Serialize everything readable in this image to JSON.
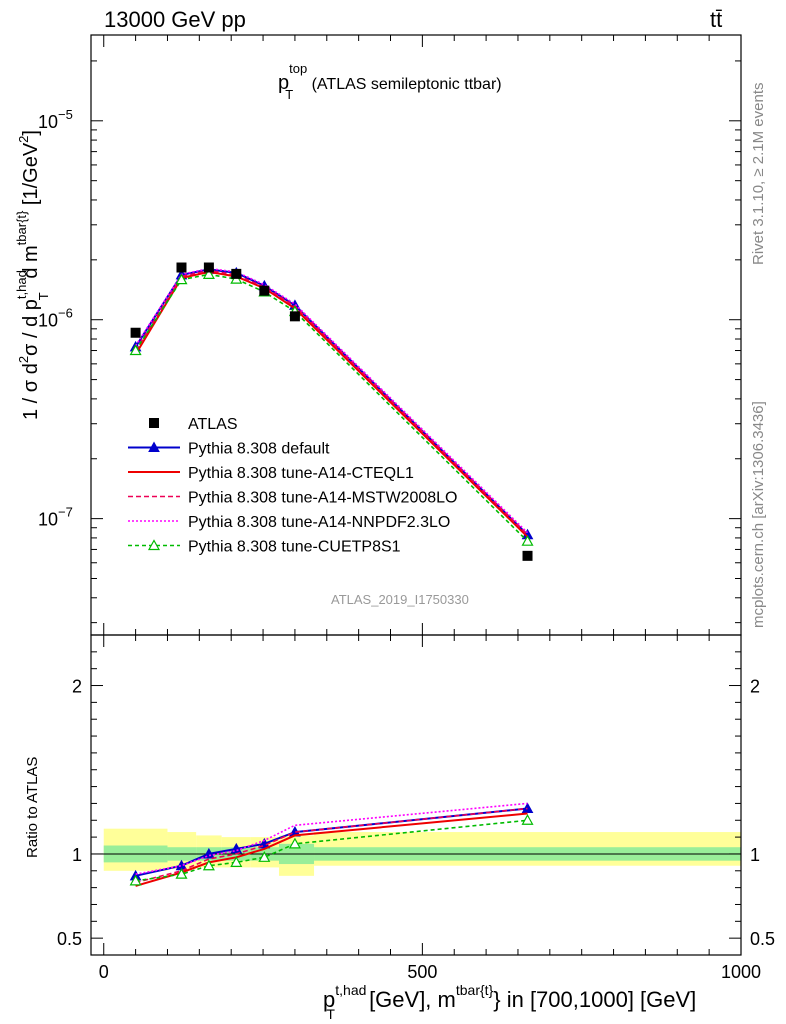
{
  "header": {
    "energy_label": "13000 GeV pp",
    "process_label": "tt̄"
  },
  "side_labels": {
    "rivet": "Rivet 3.1.10, ≥ 2.1M events",
    "mcplots": "mcplots.cern.ch [arXiv:1306.3436]"
  },
  "chart_data": [
    {
      "type": "scatter",
      "panel": "main",
      "title_main": "p",
      "title_sup": "top",
      "title_sub": "T",
      "title_rest": " (ATLAS semileptonic ttbar)",
      "watermark": "ATLAS_2019_I1750330",
      "ylabel_parts": {
        "a": "1 / σ d",
        "b": "2",
        "c": "σ / d p",
        "d": "t,had",
        "e": "T",
        "f": " d m",
        "g": "tbar{t}",
        "h": " [1/GeV",
        "i": "2",
        "j": "]"
      },
      "yscale": "log",
      "ylim": [
        2.6e-08,
        2.7e-05
      ],
      "xlim": [
        -20,
        1000
      ],
      "y_ticks": [
        {
          "value": 1e-07,
          "base": "10",
          "exp": "−7"
        },
        {
          "value": 1e-06,
          "base": "10",
          "exp": "−6"
        },
        {
          "value": 1e-05,
          "base": "10",
          "exp": "−5"
        }
      ],
      "data_series": {
        "name": "ATLAS",
        "color": "#000000",
        "x": [
          50,
          122,
          165,
          208,
          252,
          300,
          665
        ],
        "y": [
          8.6e-07,
          1.83e-06,
          1.83e-06,
          1.7e-06,
          1.4e-06,
          1.04e-06,
          6.5e-08
        ]
      },
      "series": [
        {
          "name": "Pythia 8.308 default",
          "color": "#0000cc",
          "dash": "",
          "marker": "triangle-filled",
          "x": [
            50,
            122,
            165,
            208,
            252,
            300,
            665
          ],
          "y": [
            7.3e-07,
            1.68e-06,
            1.79e-06,
            1.72e-06,
            1.48e-06,
            1.18e-06,
            8.3e-08
          ]
        },
        {
          "name": "Pythia 8.308 tune-A14-CTEQL1",
          "color": "#ee0000",
          "dash": "",
          "marker": "none",
          "x": [
            50,
            122,
            165,
            208,
            252,
            300,
            665
          ],
          "y": [
            6.7e-07,
            1.62e-06,
            1.74e-06,
            1.65e-06,
            1.44e-06,
            1.14e-06,
            8.1e-08
          ]
        },
        {
          "name": "Pythia 8.308 tune-A14-MSTW2008LO",
          "color": "#ee0055",
          "dash": "5,3",
          "marker": "none",
          "x": [
            50,
            122,
            165,
            208,
            252,
            300,
            665
          ],
          "y": [
            7e-07,
            1.65e-06,
            1.77e-06,
            1.68e-06,
            1.46e-06,
            1.17e-06,
            8.3e-08
          ]
        },
        {
          "name": "Pythia 8.308 tune-A14-NNPDF2.3LO",
          "color": "#ff00ff",
          "dash": "2,2",
          "marker": "none",
          "x": [
            50,
            122,
            165,
            208,
            252,
            300,
            665
          ],
          "y": [
            7.4e-07,
            1.69e-06,
            1.81e-06,
            1.74e-06,
            1.5e-06,
            1.2e-06,
            8.5e-08
          ]
        },
        {
          "name": "Pythia 8.308 tune-CUETP8S1",
          "color": "#00bb00",
          "dash": "4,3",
          "marker": "triangle-open",
          "x": [
            50,
            122,
            165,
            208,
            252,
            300,
            665
          ],
          "y": [
            7e-07,
            1.59e-06,
            1.69e-06,
            1.6e-06,
            1.38e-06,
            1.1e-06,
            7.7e-08
          ]
        }
      ]
    },
    {
      "type": "line",
      "panel": "ratio",
      "ylabel": "Ratio to ATLAS",
      "ylim": [
        0.4,
        2.3
      ],
      "xlim": [
        -20,
        1000
      ],
      "y_ticks": [
        {
          "value": 0.5,
          "label": "0.5"
        },
        {
          "value": 1,
          "label": "1"
        },
        {
          "value": 2,
          "label": "2"
        }
      ],
      "x_ticks": [
        {
          "value": 0,
          "label": "0"
        },
        {
          "value": 500,
          "label": "500"
        },
        {
          "value": 1000,
          "label": "1000"
        }
      ],
      "xlabel_parts": {
        "a": "p",
        "b": "t,had",
        "c": "T",
        "d": " [GeV], m",
        "e": "tbar{t}",
        "f": "} in [700,1000] [GeV]"
      },
      "bins": [
        {
          "x0": 0,
          "x1": 100,
          "stat_lo": 0.95,
          "stat_hi": 1.05,
          "tot_lo": 0.9,
          "tot_hi": 1.15
        },
        {
          "x0": 100,
          "x1": 145,
          "stat_lo": 0.96,
          "stat_hi": 1.04,
          "tot_lo": 0.91,
          "tot_hi": 1.13
        },
        {
          "x0": 145,
          "x1": 185,
          "stat_lo": 0.96,
          "stat_hi": 1.04,
          "tot_lo": 0.92,
          "tot_hi": 1.11
        },
        {
          "x0": 185,
          "x1": 230,
          "stat_lo": 0.96,
          "stat_hi": 1.04,
          "tot_lo": 0.92,
          "tot_hi": 1.1
        },
        {
          "x0": 230,
          "x1": 275,
          "stat_lo": 0.96,
          "stat_hi": 1.04,
          "tot_lo": 0.92,
          "tot_hi": 1.1
        },
        {
          "x0": 275,
          "x1": 330,
          "stat_lo": 0.94,
          "stat_hi": 1.06,
          "tot_lo": 0.87,
          "tot_hi": 1.11
        },
        {
          "x0": 330,
          "x1": 1000,
          "stat_lo": 0.96,
          "stat_hi": 1.04,
          "tot_lo": 0.93,
          "tot_hi": 1.13
        }
      ],
      "series": [
        {
          "name": "Pythia 8.308 default",
          "color": "#0000cc",
          "dash": "",
          "marker": "triangle-filled",
          "x": [
            50,
            122,
            165,
            208,
            252,
            300,
            665
          ],
          "y": [
            0.87,
            0.93,
            1.0,
            1.03,
            1.06,
            1.13,
            1.27
          ]
        },
        {
          "name": "Pythia 8.308 tune-A14-CTEQL1",
          "color": "#ee0000",
          "dash": "",
          "marker": "none",
          "x": [
            50,
            122,
            165,
            208,
            252,
            300,
            665
          ],
          "y": [
            0.81,
            0.89,
            0.95,
            0.98,
            1.03,
            1.11,
            1.24
          ]
        },
        {
          "name": "Pythia 8.308 tune-A14-MSTW2008LO",
          "color": "#ee0055",
          "dash": "5,3",
          "marker": "none",
          "x": [
            50,
            122,
            165,
            208,
            252,
            300,
            665
          ],
          "y": [
            0.83,
            0.9,
            0.97,
            1.0,
            1.05,
            1.13,
            1.27
          ]
        },
        {
          "name": "Pythia 8.308 tune-A14-NNPDF2.3LO",
          "color": "#ff00ff",
          "dash": "2,2",
          "marker": "none",
          "x": [
            50,
            122,
            165,
            208,
            252,
            300,
            665
          ],
          "y": [
            0.88,
            0.93,
            0.99,
            1.02,
            1.08,
            1.17,
            1.3
          ]
        },
        {
          "name": "Pythia 8.308 tune-CUETP8S1",
          "color": "#00bb00",
          "dash": "4,3",
          "marker": "triangle-open",
          "x": [
            50,
            122,
            165,
            208,
            252,
            300,
            665
          ],
          "y": [
            0.84,
            0.88,
            0.93,
            0.95,
            0.98,
            1.06,
            1.2
          ]
        }
      ]
    }
  ]
}
